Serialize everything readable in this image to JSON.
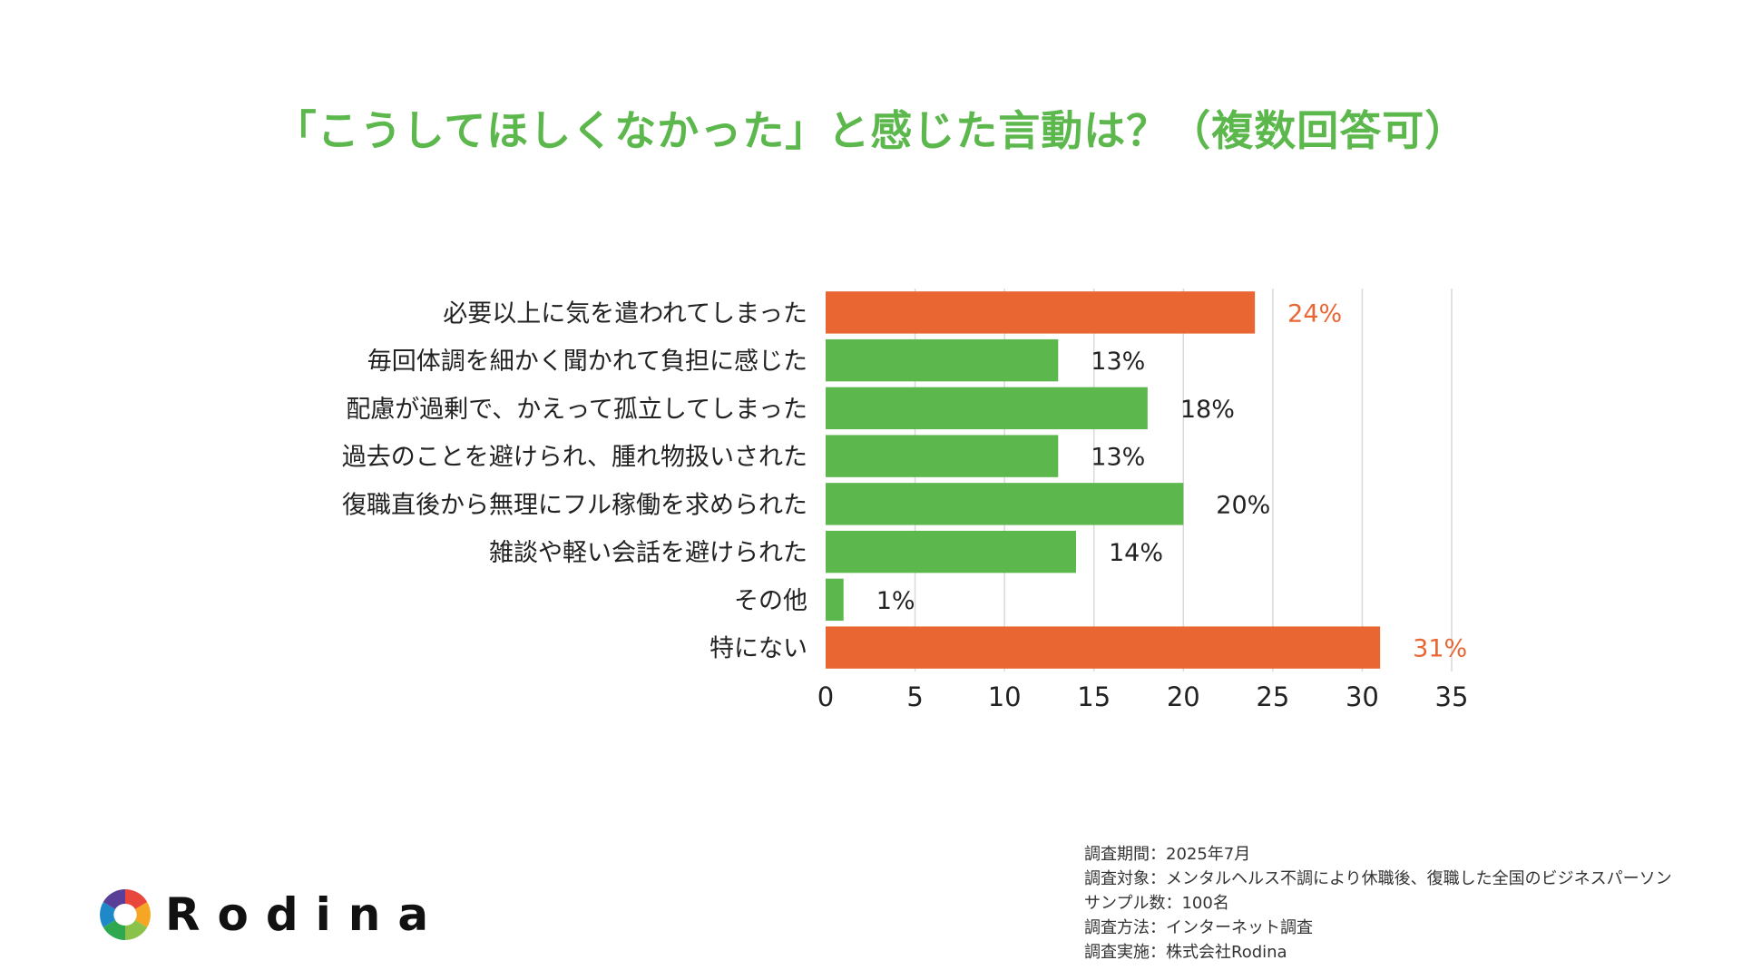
{
  "title": "「こうしてほしくなかった」と感じた言動は？（複数回答可）",
  "colors": {
    "title": "#5cb84c",
    "bar_green": "#5cb84c",
    "bar_orange": "#e96632",
    "highlight_label": "#e96632",
    "gridline": "#d9d9d9"
  },
  "chart_data": {
    "type": "bar",
    "orientation": "horizontal",
    "categories": [
      "必要以上に気を遣われてしまった",
      "毎回体調を細かく聞かれて負担に感じた",
      "配慮が過剰で、かえって孤立してしまった",
      "過去のことを避けられ、腫れ物扱いされた",
      "復職直後から無理にフル稼働を求められた",
      "雑談や軽い会話を避けられた",
      "その他",
      "特にない"
    ],
    "values": [
      24,
      13,
      18,
      13,
      20,
      14,
      1,
      31
    ],
    "data_labels": [
      "24%",
      "13%",
      "18%",
      "13%",
      "20%",
      "14%",
      "1%",
      "31%"
    ],
    "highlight": [
      true,
      false,
      false,
      false,
      false,
      false,
      false,
      true
    ],
    "xlim": [
      0,
      35
    ],
    "xticks": [
      0,
      5,
      10,
      15,
      20,
      25,
      30,
      35
    ],
    "xtick_labels": [
      "0",
      "5",
      "10",
      "15",
      "20",
      "25",
      "30",
      "35"
    ],
    "grid": "vertical",
    "legend": "none",
    "xlabel": "",
    "ylabel": ""
  },
  "logo": {
    "text": "Rodina",
    "icon": "aperture-logo-icon"
  },
  "notes": [
    "調査期間：2025年7月",
    "調査対象：メンタルヘルス不調により休職後、復職した全国のビジネスパーソン",
    "サンプル数：100名",
    "調査方法：インターネット調査",
    "調査実施：株式会社Rodina"
  ]
}
